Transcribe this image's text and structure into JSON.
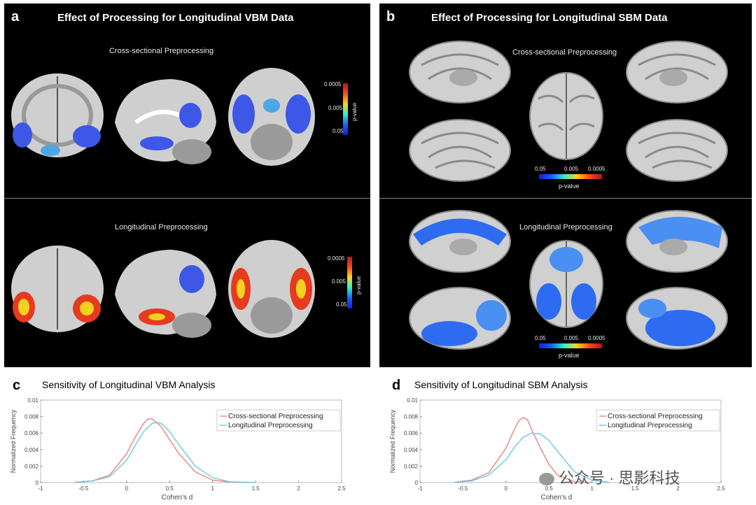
{
  "panels": {
    "a": {
      "letter": "a",
      "title": "Effect of Processing for Longitudinal VBM Data",
      "sub_top": "Cross-sectional Preprocessing",
      "sub_bottom": "Longitudinal Preprocessing",
      "colorbar": {
        "title": "p-value",
        "ticks": [
          "0.0005",
          "0.005",
          "0.05"
        ]
      }
    },
    "b": {
      "letter": "b",
      "title": "Effect of Processing for Longitudinal SBM Data",
      "sub_top": "Cross-sectional Preprocessing",
      "sub_bottom": "Longitudinal Preprocessing",
      "colorbar": {
        "title": "p-value",
        "ticks": [
          "0.05",
          "0.005",
          "0.0005"
        ]
      }
    },
    "c": {
      "letter": "c"
    },
    "d": {
      "letter": "d"
    }
  },
  "chart_data": [
    {
      "type": "line",
      "title": "Sensitivity of Longitudinal VBM Analysis",
      "xlabel": "Cohen's d",
      "ylabel": "Normalized Frequency",
      "xlim": [
        -1,
        2.5
      ],
      "ylim": [
        0,
        0.01
      ],
      "xticks": [
        "-1",
        "-0.5",
        "0",
        "0.5",
        "1",
        "1.5",
        "2",
        "2.5"
      ],
      "yticks": [
        "0",
        "0.002",
        "0.004",
        "0.006",
        "0.008",
        "0.01"
      ],
      "legend_position": "top-right",
      "series": [
        {
          "name": "Cross-sectional Preprocessing",
          "color": "#e8847c",
          "x": [
            -0.6,
            -0.4,
            -0.2,
            0,
            0.1,
            0.2,
            0.25,
            0.3,
            0.4,
            0.5,
            0.6,
            0.8,
            1.0,
            1.2,
            1.5
          ],
          "y": [
            5e-05,
            0.0002,
            0.0009,
            0.0035,
            0.0055,
            0.0072,
            0.0077,
            0.0077,
            0.0068,
            0.0052,
            0.0036,
            0.0013,
            0.0003,
            8e-05,
            2e-05
          ]
        },
        {
          "name": "Longitudinal Preprocessing",
          "color": "#6fc6e0",
          "x": [
            -0.6,
            -0.4,
            -0.2,
            0,
            0.1,
            0.2,
            0.3,
            0.35,
            0.4,
            0.5,
            0.6,
            0.8,
            1.0,
            1.2,
            1.5
          ],
          "y": [
            5e-05,
            0.0002,
            0.0007,
            0.0027,
            0.0045,
            0.0062,
            0.0072,
            0.0073,
            0.0072,
            0.0062,
            0.0047,
            0.002,
            0.0006,
            0.0001,
            2e-05
          ]
        }
      ]
    },
    {
      "type": "line",
      "title": "Sensitivity of Longitudinal SBM Analysis",
      "xlabel": "Cohen's d",
      "ylabel": "Normalized Frequency",
      "xlim": [
        -1,
        2.5
      ],
      "ylim": [
        0,
        0.01
      ],
      "xticks": [
        "-1",
        "-0.5",
        "0",
        "0.5",
        "1",
        "1.5",
        "2",
        "2.5"
      ],
      "yticks": [
        "0",
        "0.002",
        "0.004",
        "0.006",
        "0.008",
        "0.01"
      ],
      "legend_position": "top-right",
      "series": [
        {
          "name": "Cross-sectional Preprocessing",
          "color": "#e8847c",
          "x": [
            -0.6,
            -0.4,
            -0.2,
            0,
            0.1,
            0.15,
            0.2,
            0.25,
            0.3,
            0.4,
            0.5,
            0.6,
            0.8,
            1.0
          ],
          "y": [
            5e-05,
            0.0003,
            0.0012,
            0.0042,
            0.0065,
            0.0075,
            0.0079,
            0.0076,
            0.0064,
            0.0042,
            0.0022,
            0.0009,
            0.0001,
            2e-05
          ]
        },
        {
          "name": "Longitudinal Preprocessing",
          "color": "#6fc6e0",
          "x": [
            -0.6,
            -0.4,
            -0.2,
            0,
            0.1,
            0.2,
            0.3,
            0.4,
            0.5,
            0.6,
            0.7,
            0.8,
            1.0,
            1.2
          ],
          "y": [
            5e-05,
            0.0002,
            0.0009,
            0.0028,
            0.0043,
            0.0055,
            0.006,
            0.0059,
            0.0051,
            0.0038,
            0.0025,
            0.0013,
            0.0003,
            3e-05
          ]
        }
      ]
    }
  ],
  "watermark": "公众号 · 思影科技"
}
